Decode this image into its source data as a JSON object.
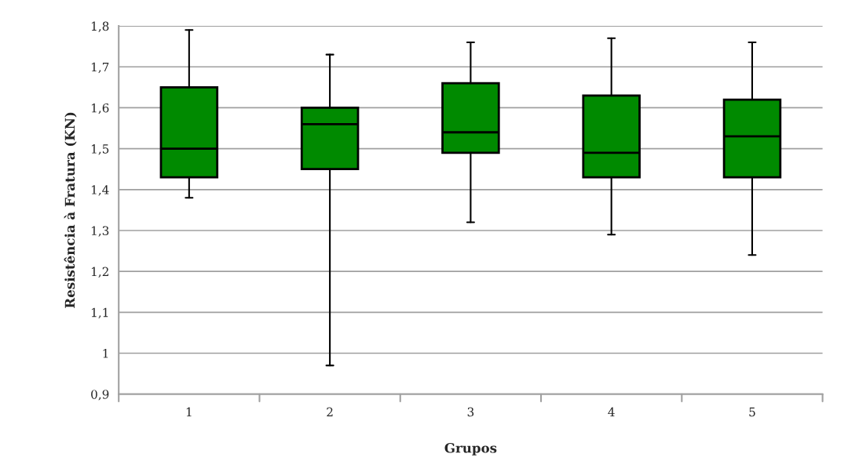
{
  "chart_data": {
    "type": "box",
    "xlabel": "Grupos",
    "ylabel": "Resistência à Fratura (KN)",
    "categories": [
      "1",
      "2",
      "3",
      "4",
      "5"
    ],
    "color": "#008a00",
    "boxes": [
      {
        "low": 1.38,
        "q1": 1.43,
        "median": 1.5,
        "q3": 1.65,
        "high": 1.79
      },
      {
        "low": 0.97,
        "q1": 1.45,
        "median": 1.56,
        "q3": 1.6,
        "high": 1.73
      },
      {
        "low": 1.32,
        "q1": 1.49,
        "median": 1.54,
        "q3": 1.66,
        "high": 1.76
      },
      {
        "low": 1.29,
        "q1": 1.43,
        "median": 1.49,
        "q3": 1.63,
        "high": 1.77
      },
      {
        "low": 1.24,
        "q1": 1.43,
        "median": 1.53,
        "q3": 1.62,
        "high": 1.76
      }
    ],
    "ylim": [
      0.9,
      1.8
    ],
    "yticks": [
      {
        "value": 0.9,
        "label": "0,9"
      },
      {
        "value": 1.0,
        "label": "1"
      },
      {
        "value": 1.1,
        "label": "1,1"
      },
      {
        "value": 1.2,
        "label": "1,2"
      },
      {
        "value": 1.3,
        "label": "1,3"
      },
      {
        "value": 1.4,
        "label": "1,4"
      },
      {
        "value": 1.5,
        "label": "1,5"
      },
      {
        "value": 1.6,
        "label": "1,6"
      },
      {
        "value": 1.7,
        "label": "1,7"
      },
      {
        "value": 1.8,
        "label": "1,8"
      }
    ],
    "grid": "y"
  }
}
